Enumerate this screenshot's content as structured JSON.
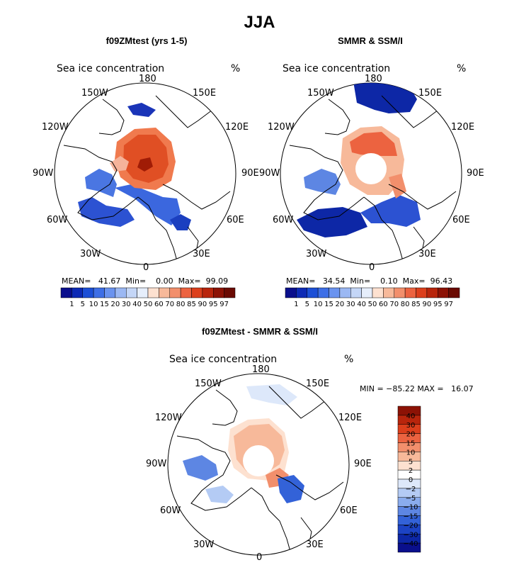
{
  "title": "JJA",
  "panels": [
    {
      "title": "f09ZMtest (yrs 1-5)",
      "label": "Sea ice concentration",
      "units": "%",
      "stats": {
        "mean_label": "MEAN=",
        "mean": "41.67",
        "min_label": "Min=",
        "min": "0.00",
        "max_label": "Max=",
        "max": "99.09"
      }
    },
    {
      "title": "SMMR & SSM/I",
      "label": "Sea ice concentration",
      "units": "%",
      "stats": {
        "mean_label": "MEAN=",
        "mean": "34.54",
        "min_label": "Min=",
        "min": "0.10",
        "max_label": "Max=",
        "max": "96.43"
      }
    },
    {
      "title": "f09ZMtest - SMMR & SSM/I",
      "label": "Sea ice concentration",
      "units": "%",
      "stats_text": "MIN = −85.22 MAX =   16.07"
    }
  ],
  "longitudes": {
    "top": "180",
    "bottom": "0",
    "n150w": "150W",
    "n150e": "150E",
    "n120w": "120W",
    "n120e": "120E",
    "n90w": "90W",
    "n90e": "90E",
    "n60w": "60W",
    "n60e": "60E",
    "n30w": "30W",
    "n30e": "30E"
  },
  "colorbar_horizontal": {
    "ticks": [
      "1",
      "5",
      "10",
      "15",
      "20",
      "30",
      "40",
      "50",
      "60",
      "70",
      "80",
      "85",
      "90",
      "95",
      "97"
    ],
    "colors": [
      "#0a0f8c",
      "#0d2ab5",
      "#1c4fd6",
      "#3e6fe6",
      "#6a93ef",
      "#9bb8f3",
      "#c4d6f7",
      "#e6eefb",
      "#fde1d0",
      "#f7b99a",
      "#f28f6c",
      "#ec6340",
      "#dc3f1c",
      "#b8250c",
      "#8c1205",
      "#6a0a02"
    ]
  },
  "colorbar_vertical": {
    "ticks": [
      "40",
      "30",
      "20",
      "15",
      "10",
      "5",
      "2",
      "0",
      "−2",
      "−5",
      "−10",
      "−15",
      "−20",
      "−30",
      "−40"
    ],
    "colors": [
      "#8c1205",
      "#b8250c",
      "#dc3f1c",
      "#ec6340",
      "#f28f6c",
      "#f7b99a",
      "#fde1d0",
      "#ffffff",
      "#dde8fa",
      "#b4cbf4",
      "#8aaced",
      "#5d86e3",
      "#3362d8",
      "#1c43c4",
      "#0d27a6",
      "#0a0f8c"
    ]
  }
}
